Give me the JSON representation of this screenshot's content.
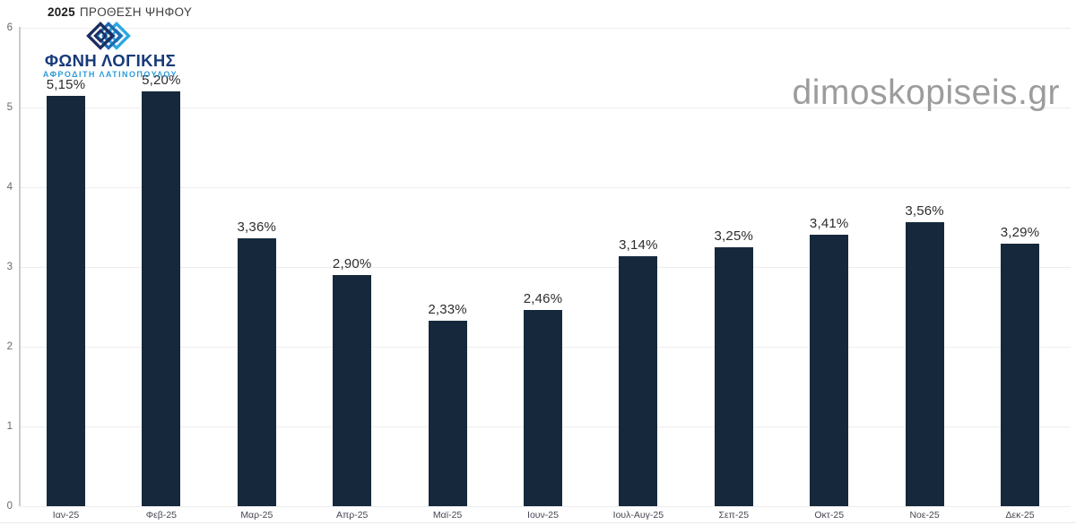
{
  "header": {
    "year": "2025",
    "title": "ΠΡΟΘΕΣΗ ΨΗΦΟΥ"
  },
  "logo": {
    "name": "ΦΩΝΗ ΛΟΓΙΚΗΣ",
    "subtitle": "ΑΦΡΟΔΙΤΗ ΛΑΤΙΝΟΠΟΥΛΟΥ",
    "icon": "nested-diamonds-icon",
    "colors": {
      "name": "#173b7a",
      "subtitle": "#2d9cd9",
      "icon_navy": "#1d2d5f",
      "icon_mid": "#1f6bb4",
      "icon_light": "#2ca7e2"
    }
  },
  "watermark": "dimoskopiseis.gr",
  "chart_data": {
    "type": "bar",
    "title": "2025 ΠΡΟΘΕΣΗ ΨΗΦΟΥ",
    "categories": [
      "Ιαν-25",
      "Φεβ-25",
      "Μαρ-25",
      "Απρ-25",
      "Μαϊ-25",
      "Ιουν-25",
      "Ιουλ-Αυγ-25",
      "Σεπ-25",
      "Οκτ-25",
      "Νοε-25",
      "Δεκ-25"
    ],
    "values": [
      5.15,
      5.2,
      3.36,
      2.9,
      2.33,
      2.46,
      3.14,
      3.25,
      3.41,
      3.56,
      3.29
    ],
    "value_labels": [
      "5,15%",
      "5,20%",
      "3,36%",
      "2,90%",
      "2,33%",
      "2,46%",
      "3,14%",
      "3,25%",
      "3,41%",
      "3,56%",
      "3,29%"
    ],
    "xlabel": "",
    "ylabel": "",
    "ylim": [
      0,
      6
    ],
    "y_ticks": [
      0,
      1,
      2,
      3,
      4,
      5,
      6
    ],
    "grid": true,
    "legend": false,
    "bar_color": "#16293c",
    "label_color": "#2d2d2d",
    "grid_color": "#ededed",
    "axis_color": "#c6cccb"
  }
}
